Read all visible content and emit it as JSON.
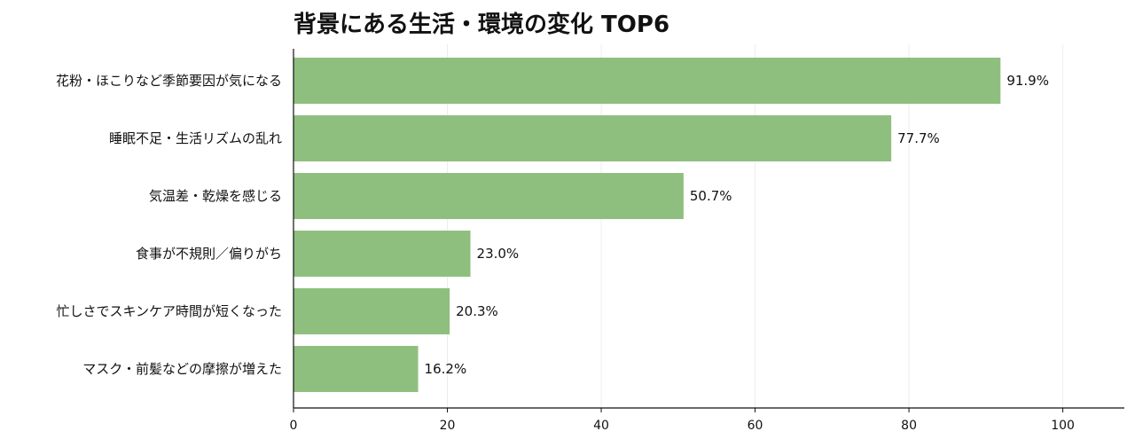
{
  "chart_data": {
    "type": "bar",
    "orientation": "horizontal",
    "title": "背景にある生活・環境の変化 TOP6",
    "categories": [
      "花粉・ほこりなど季節要因が気になる",
      "睡眠不足・生活リズムの乱れ",
      "気温差・乾燥を感じる",
      "食事が不規則／偏りがち",
      "忙しさでスキンケア時間が短くなった",
      "マスク・前髪などの摩擦が増えた"
    ],
    "values": [
      91.9,
      77.7,
      50.7,
      23.0,
      20.3,
      16.2
    ],
    "value_labels": [
      "91.9%",
      "77.7%",
      "50.7%",
      "23.0%",
      "20.3%",
      "16.2%"
    ],
    "xlim": [
      0,
      108
    ],
    "xticks": [
      0,
      20,
      40,
      60,
      80,
      100
    ],
    "grid": "vertical",
    "bar_color": "#8fbf7f"
  }
}
